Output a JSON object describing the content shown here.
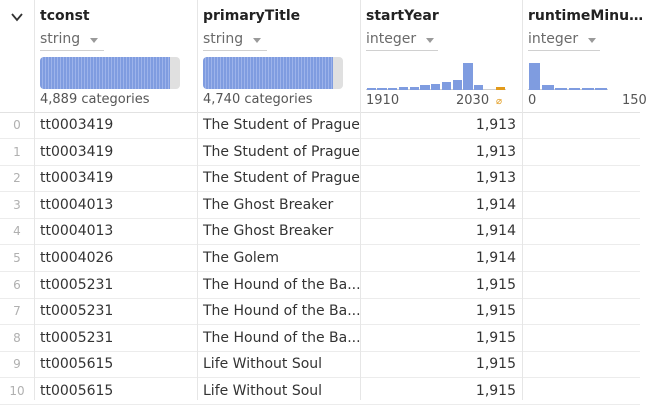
{
  "columns": [
    {
      "name": "tconst",
      "type": "string",
      "summary": "4,889 categories",
      "fill": 0.93
    },
    {
      "name": "primaryTitle",
      "type": "string",
      "summary": "4,740 categories",
      "fill": 0.93
    },
    {
      "name": "startYear",
      "type": "integer",
      "axis_min": "1910",
      "axis_max": "2030",
      "nan_marker": "⌀"
    },
    {
      "name": "runtimeMinu…",
      "type": "integer",
      "axis_min": "0",
      "axis_max": "150"
    }
  ],
  "rows": [
    {
      "index": "0",
      "tconst": "tt0003419",
      "title": "The Student of Prague",
      "year": "1,913"
    },
    {
      "index": "1",
      "tconst": "tt0003419",
      "title": "The Student of Prague",
      "year": "1,913"
    },
    {
      "index": "2",
      "tconst": "tt0003419",
      "title": "The Student of Prague",
      "year": "1,913"
    },
    {
      "index": "3",
      "tconst": "tt0004013",
      "title": "The Ghost Breaker",
      "year": "1,914"
    },
    {
      "index": "4",
      "tconst": "tt0004013",
      "title": "The Ghost Breaker",
      "year": "1,914"
    },
    {
      "index": "5",
      "tconst": "tt0004026",
      "title": "The Golem",
      "year": "1,914"
    },
    {
      "index": "6",
      "tconst": "tt0005231",
      "title": "The Hound of the Ba...",
      "year": "1,915"
    },
    {
      "index": "7",
      "tconst": "tt0005231",
      "title": "The Hound of the Ba...",
      "year": "1,915"
    },
    {
      "index": "8",
      "tconst": "tt0005231",
      "title": "The Hound of the Ba...",
      "year": "1,915"
    },
    {
      "index": "9",
      "tconst": "tt0005615",
      "title": "Life Without Soul",
      "year": "1,915"
    },
    {
      "index": "10",
      "tconst": "tt0005615",
      "title": "Life Without Soul",
      "year": "1,915"
    }
  ],
  "histograms": {
    "startYear": [
      0.05,
      0.05,
      0.05,
      0.08,
      0.1,
      0.15,
      0.18,
      0.25,
      0.3,
      0.8,
      0.15,
      0,
      0.08
    ],
    "runtime": [
      0.8,
      0.15,
      0.05,
      0.05,
      0.02,
      0.02
    ]
  },
  "colors": {
    "bar": "#7f9ce0",
    "nan": "#e29a1a"
  }
}
